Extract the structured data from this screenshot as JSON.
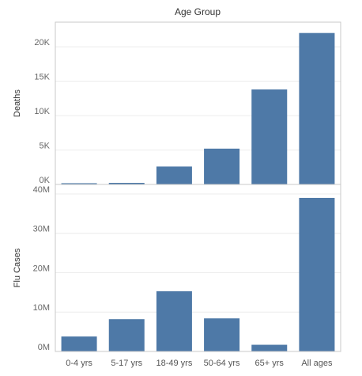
{
  "chart_data": {
    "type": "bar",
    "column_header": "Age Group",
    "categories": [
      "0-4 yrs",
      "5-17 yrs",
      "18-49 yrs",
      "50-64 yrs",
      "65+ yrs",
      "All ages"
    ],
    "panels": [
      {
        "ylabel": "Deaths",
        "values": [
          180,
          230,
          2600,
          5200,
          13800,
          22000
        ],
        "ylim": [
          0,
          23000
        ],
        "ticks": [
          0,
          5000,
          10000,
          15000,
          20000
        ],
        "tick_labels": [
          "0K",
          "5K",
          "10K",
          "15K",
          "20K"
        ]
      },
      {
        "ylabel": "Flu Cases",
        "values": [
          3800000,
          8200000,
          15300000,
          8400000,
          1700000,
          39000000
        ],
        "ylim": [
          0,
          40200000
        ],
        "ticks": [
          0,
          10000000,
          20000000,
          30000000,
          40000000
        ],
        "tick_labels": [
          "0M",
          "10M",
          "20M",
          "30M",
          "40M"
        ]
      }
    ],
    "bar_color": "#4e79a7",
    "grid": true
  }
}
